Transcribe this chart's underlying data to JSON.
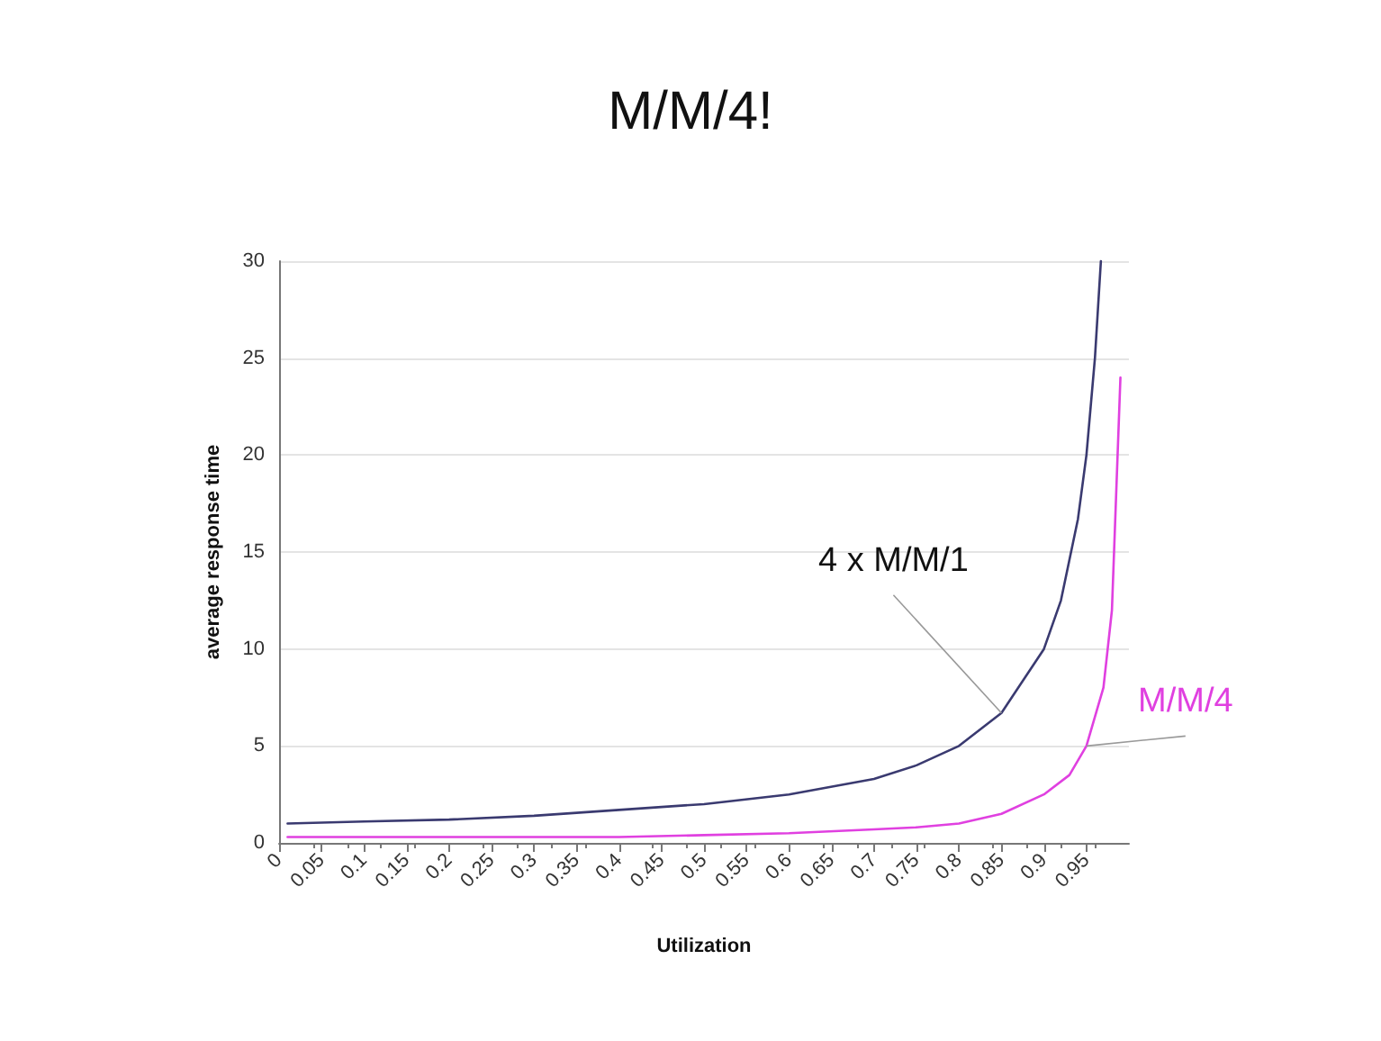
{
  "chart_data": {
    "type": "line",
    "title": "M/M/4!",
    "xlabel": "Utilization",
    "ylabel": "average response time",
    "xlim": [
      0,
      1
    ],
    "xticks": [
      0,
      0.05,
      0.1,
      0.15,
      0.2,
      0.25,
      0.3,
      0.35,
      0.4,
      0.45,
      0.5,
      0.55,
      0.6,
      0.65,
      0.7,
      0.75,
      0.8,
      0.85,
      0.9,
      0.95
    ],
    "ylim": [
      0,
      30
    ],
    "yticks": [
      0,
      5,
      10,
      15,
      20,
      25,
      30
    ],
    "grid": "y",
    "legend": false,
    "marker": "none",
    "line_style": "solid",
    "series": [
      {
        "name": "4 x M/M/1",
        "color": "#3a3a70",
        "x": [
          0.01,
          0.1,
          0.2,
          0.3,
          0.4,
          0.5,
          0.6,
          0.7,
          0.75,
          0.8,
          0.85,
          0.9,
          0.92,
          0.94,
          0.95,
          0.96,
          0.967
        ],
        "values": [
          1,
          1.1,
          1.2,
          1.4,
          1.7,
          2,
          2.5,
          3.3,
          4,
          5,
          6.7,
          10,
          12.5,
          16.7,
          20,
          25,
          30
        ]
      },
      {
        "name": "M/M/4",
        "color": "#e040e0",
        "x": [
          0.01,
          0.2,
          0.4,
          0.5,
          0.6,
          0.7,
          0.75,
          0.8,
          0.85,
          0.9,
          0.93,
          0.95,
          0.97,
          0.98,
          0.99
        ],
        "values": [
          0.3,
          0.3,
          0.3,
          0.4,
          0.5,
          0.7,
          0.8,
          1,
          1.5,
          2.5,
          3.5,
          5,
          8,
          12,
          24
        ]
      }
    ]
  }
}
